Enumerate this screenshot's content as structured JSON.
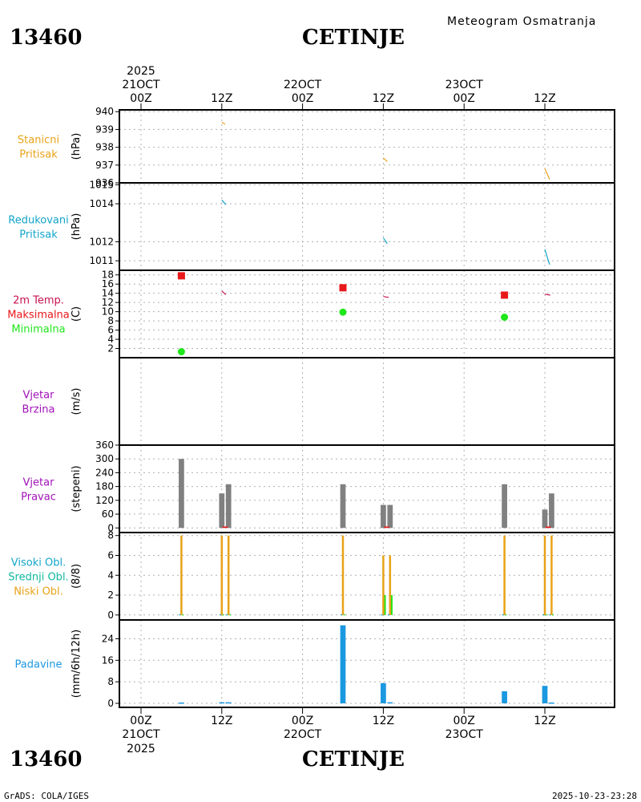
{
  "header": {
    "station_id": "13460",
    "station_name": "CETINJE",
    "chart_title": "Meteogram Osmatranja",
    "footer_left": "GrADS: COLA/IGES",
    "footer_right": "2025-10-23-23:28"
  },
  "time_axis": {
    "year": "2025",
    "ticks": [
      {
        "hour": 0,
        "top": "00Z",
        "day": "21OCT"
      },
      {
        "hour": 12,
        "top": "12Z",
        "day": ""
      },
      {
        "hour": 24,
        "top": "00Z",
        "day": "22OCT"
      },
      {
        "hour": 36,
        "top": "12Z",
        "day": ""
      },
      {
        "hour": 48,
        "top": "00Z",
        "day": "23OCT"
      },
      {
        "hour": 60,
        "top": "12Z",
        "day": ""
      }
    ]
  },
  "colors": {
    "orange": "#e8a317",
    "cyan": "#12a5c9",
    "red": "#e8181a",
    "green": "#1ee81a",
    "purple": "#a112b8",
    "crimson": "#c8124f",
    "gray": "#808080",
    "blue": "#1a98e0",
    "teal": "#12b8a0",
    "grid": "#b0b0b0"
  },
  "chart_data": [
    {
      "type": "line",
      "id": "stanicni",
      "title_lines": [
        {
          "text": "Stanicni",
          "color": "orange"
        },
        {
          "text": "Pritisak",
          "color": "orange"
        }
      ],
      "ylabel": "(hPa)",
      "ylim": [
        936.0,
        940.1
      ],
      "yticks": [
        940,
        939,
        938,
        937,
        936
      ],
      "ytick_labels": [
        "940",
        "939",
        "938",
        "937",
        "936"
      ],
      "series": [
        {
          "name": "Stanicni Pritisak",
          "color": "orange",
          "segments": [
            [
              [
                12.0,
                939.4
              ],
              [
                12.5,
                939.3
              ]
            ],
            [
              [
                36.0,
                937.4
              ],
              [
                36.6,
                937.2
              ]
            ],
            [
              [
                60.0,
                936.8
              ],
              [
                60.7,
                936.2
              ]
            ]
          ]
        }
      ]
    },
    {
      "type": "line",
      "id": "redukovani",
      "title_lines": [
        {
          "text": "Redukovani",
          "color": "cyan"
        },
        {
          "text": "Pritisak",
          "color": "cyan"
        }
      ],
      "ylabel": "(hPa)",
      "ylim": [
        1010.5,
        1015.1
      ],
      "yticks": [
        1015,
        1014,
        1012,
        1011
      ],
      "ytick_labels": [
        "1015",
        "1014",
        "1012",
        "1011"
      ],
      "series": [
        {
          "name": "Redukovani Pritisak",
          "color": "cyan",
          "segments": [
            [
              [
                12.0,
                1014.2
              ],
              [
                12.6,
                1013.95
              ]
            ],
            [
              [
                36.0,
                1012.2
              ],
              [
                36.6,
                1011.9
              ]
            ],
            [
              [
                60.0,
                1011.6
              ],
              [
                60.7,
                1010.8
              ]
            ]
          ]
        }
      ]
    },
    {
      "type": "scatter",
      "id": "temperatura",
      "title_lines": [
        {
          "text": "2m Temp.",
          "color": "crimson"
        },
        {
          "text": "Maksimalna",
          "color": "red"
        },
        {
          "text": "Minimalna",
          "color": "green"
        }
      ],
      "ylabel": "(C)",
      "ylim": [
        0,
        19
      ],
      "yticks": [
        18,
        16,
        14,
        12,
        10,
        8,
        6,
        4,
        2
      ],
      "ytick_labels": [
        "18",
        "16",
        "14",
        "12",
        "10",
        "8",
        "6",
        "4",
        "2"
      ],
      "series": [
        {
          "name": "2m Temp.",
          "color": "crimson",
          "kind": "line",
          "segments": [
            [
              [
                12.0,
                14.5
              ],
              [
                12.6,
                13.7
              ]
            ],
            [
              [
                36.0,
                13.3
              ],
              [
                36.8,
                13.1
              ]
            ],
            [
              [
                60.0,
                13.8
              ],
              [
                60.8,
                13.6
              ]
            ]
          ]
        },
        {
          "name": "Maksimalna",
          "color": "red",
          "kind": "square",
          "x": [
            6,
            30,
            54
          ],
          "y": [
            17.8,
            15.2,
            13.6
          ]
        },
        {
          "name": "Minimalna",
          "color": "green",
          "kind": "circle",
          "x": [
            6,
            30,
            54
          ],
          "y": [
            1.3,
            9.9,
            8.8
          ]
        }
      ]
    },
    {
      "type": "line",
      "id": "vjetar_brzina",
      "title_lines": [
        {
          "text": "Vjetar",
          "color": "purple"
        },
        {
          "text": "Brzina",
          "color": "purple"
        }
      ],
      "ylabel": "(m/s)",
      "ylim": [
        0,
        10
      ],
      "yticks": [],
      "ytick_labels": [],
      "series": []
    },
    {
      "type": "bar",
      "id": "vjetar_pravac",
      "title_lines": [
        {
          "text": "Vjetar",
          "color": "purple"
        },
        {
          "text": "Pravac",
          "color": "purple"
        }
      ],
      "ylabel": "(stepeni)",
      "ylim": [
        -20,
        360
      ],
      "yticks": [
        360,
        300,
        240,
        180,
        120,
        60,
        0
      ],
      "ytick_labels": [
        "360",
        "300",
        "240",
        "180",
        "120",
        "60",
        "0"
      ],
      "series": [
        {
          "name": "Pravac",
          "color": "gray",
          "width_h": 0.8,
          "x": [
            6,
            12,
            13,
            30,
            36,
            37,
            54,
            60,
            61
          ],
          "values": [
            300,
            150,
            190,
            190,
            100,
            100,
            190,
            80,
            150
          ]
        },
        {
          "name": "Tisina",
          "color": "red",
          "width_h": 0.8,
          "x": [
            12.5,
            36.5,
            60.5
          ],
          "values": [
            6,
            6,
            6
          ]
        }
      ]
    },
    {
      "type": "bar",
      "id": "oblacnost",
      "title_lines": [
        {
          "text": "Visoki Obl.",
          "color": "cyan"
        },
        {
          "text": "Srednji Obl.",
          "color": "teal"
        },
        {
          "text": "Niski Obl.",
          "color": "orange"
        }
      ],
      "ylabel": "(8/8)",
      "ylim": [
        -0.5,
        8.3
      ],
      "yticks": [
        8,
        6,
        4,
        2,
        0
      ],
      "ytick_labels": [
        "8",
        "6",
        "4",
        "2",
        "0"
      ],
      "series": [
        {
          "name": "Visoki Obl.",
          "color": "cyan",
          "width_h": 0.2,
          "x": [
            5.8,
            11.8,
            12.8,
            29.8,
            35.8,
            36.8,
            53.8,
            59.8,
            60.8
          ],
          "values": [
            0,
            0,
            0,
            0,
            0,
            0,
            0,
            0,
            0
          ]
        },
        {
          "name": "Srednji Obl.",
          "color": "green",
          "width_h": 0.25,
          "x": [
            6.2,
            12.2,
            13.2,
            30.2,
            36.25,
            37.25,
            54.2,
            60.2,
            61.2
          ],
          "values": [
            0,
            0,
            0,
            0,
            2,
            2,
            0,
            0,
            0
          ]
        },
        {
          "name": "Niski Obl.",
          "color": "orange",
          "width_h": 0.3,
          "x": [
            6,
            12,
            13,
            30,
            36,
            37,
            54,
            60,
            61
          ],
          "values": [
            8,
            8,
            8,
            8,
            6,
            6,
            8,
            8,
            8
          ]
        }
      ]
    },
    {
      "type": "bar",
      "id": "padavine",
      "title_lines": [
        {
          "text": "Padavine",
          "color": "blue"
        }
      ],
      "ylabel": "(mm/6h/12h)",
      "ylim": [
        -1.5,
        31
      ],
      "yticks": [
        24,
        16,
        8,
        0
      ],
      "ytick_labels": [
        "24",
        "16",
        "8",
        "0"
      ],
      "series": [
        {
          "name": "Padavine",
          "color": "blue",
          "width_h": 0.8,
          "x": [
            6,
            12,
            13,
            30,
            36,
            37,
            54,
            60,
            61
          ],
          "values": [
            0.3,
            0.4,
            0.4,
            29,
            7.5,
            0.4,
            4.5,
            6.5,
            0.3
          ]
        }
      ]
    }
  ]
}
